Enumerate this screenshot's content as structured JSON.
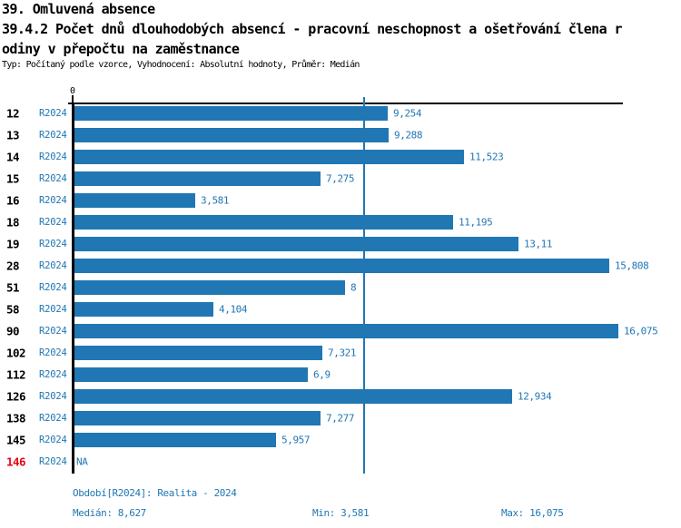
{
  "title": {
    "line1": "39. Omluvená absence",
    "line2": "39.4.2 Počet dnů dlouhodobých absencí - pracovní neschopnost a ošetřování člena r",
    "line3": "odiny v přepočtu na zaměstnance",
    "meta": "Typ: Počítaný podle vzorce, Vyhodnocení: Absolutní hodnoty, Průměr: Medián"
  },
  "chart_data": {
    "type": "bar",
    "orientation": "horizontal",
    "categories": [
      "12",
      "13",
      "14",
      "15",
      "16",
      "18",
      "19",
      "28",
      "51",
      "58",
      "90",
      "102",
      "112",
      "126",
      "138",
      "145",
      "146"
    ],
    "series": [
      {
        "name": "R2024",
        "values": [
          9.254,
          9.288,
          11.523,
          7.275,
          3.581,
          11.195,
          13.11,
          15.808,
          8,
          4.104,
          16.075,
          7.321,
          6.9,
          12.934,
          7.277,
          5.957,
          null
        ]
      }
    ],
    "value_labels": [
      "9,254",
      "9,288",
      "11,523",
      "7,275",
      "3,581",
      "11,195",
      "13,11",
      "15,808",
      "8",
      "4,104",
      "16,075",
      "7,321",
      "6,9",
      "12,934",
      "7,277",
      "5,957",
      "NA"
    ],
    "row_period_label": "R2024",
    "highlight_category": "146",
    "x_zero_label": "0",
    "xlim": [
      0,
      16.7
    ],
    "x_max": 16.075,
    "median_value": 8.627,
    "grid": false,
    "legend_position": "none",
    "colors": {
      "bar": "#2077b4",
      "median_line": "#2077b4",
      "period_text": "#2077b4",
      "value_text": "#2077b4",
      "highlight_row": "#e30613",
      "axis": "#000000"
    }
  },
  "footer": {
    "period_info": "Období[R2024]: Realita - 2024",
    "median": "Medián: 8,627",
    "min": "Min: 3,581",
    "max": "Max: 16,075"
  }
}
